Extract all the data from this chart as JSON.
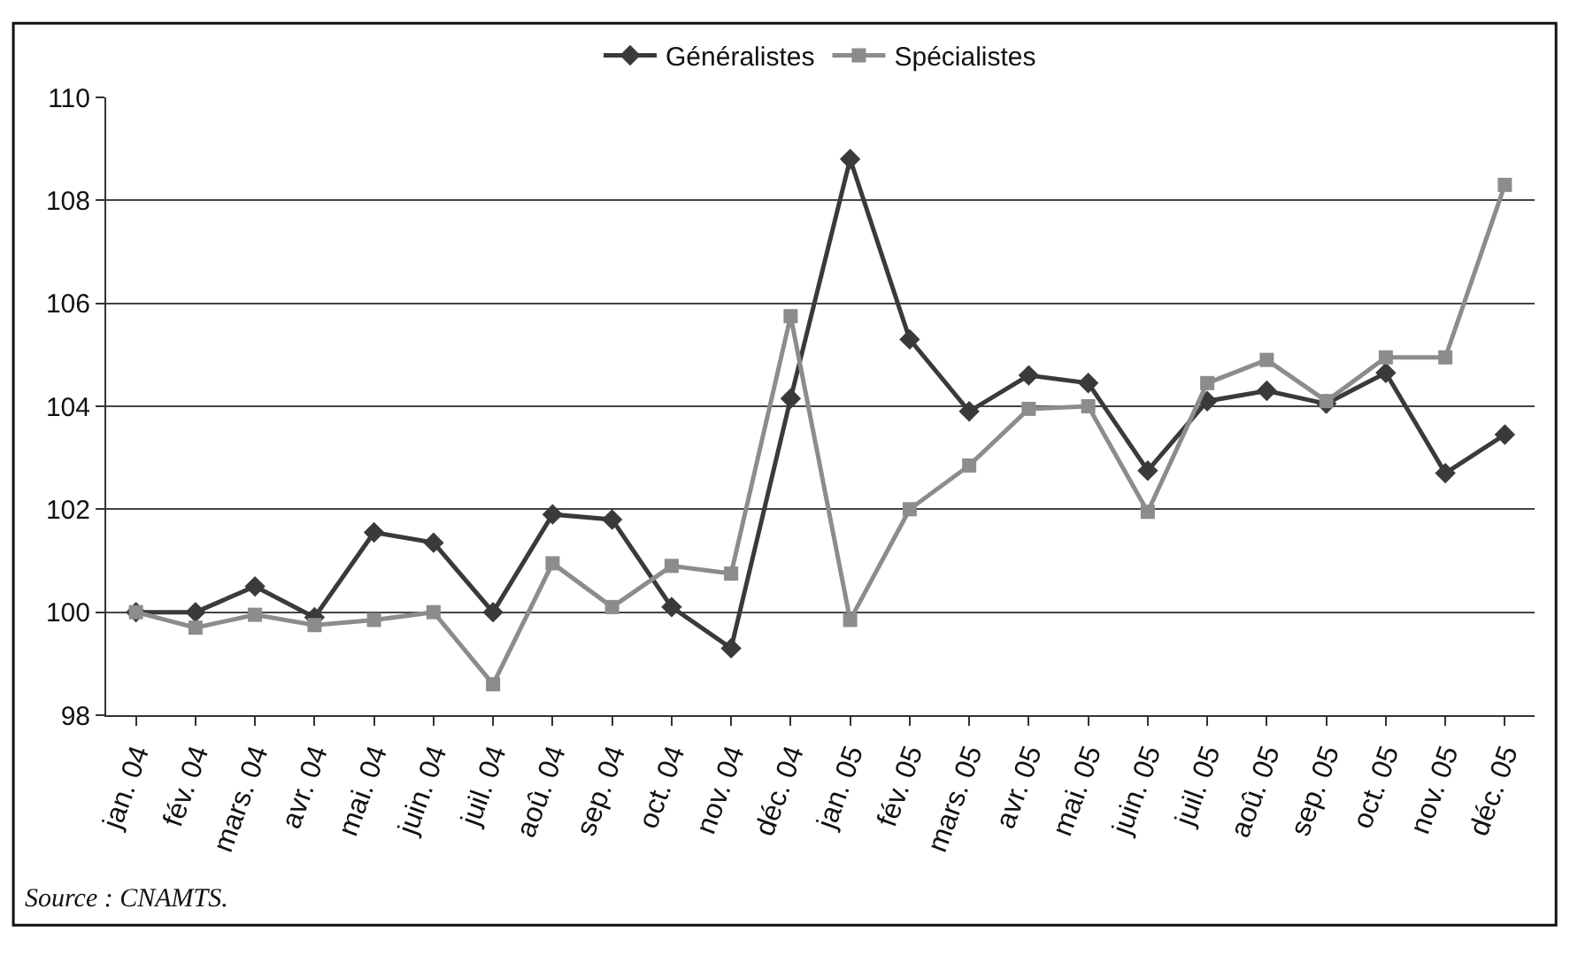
{
  "chart_data": {
    "type": "line",
    "categories": [
      "jan. 04",
      "fév. 04",
      "mars. 04",
      "avr. 04",
      "mai. 04",
      "juin. 04",
      "juil. 04",
      "aoû. 04",
      "sep. 04",
      "oct. 04",
      "nov. 04",
      "déc. 04",
      "jan. 05",
      "fév. 05",
      "mars. 05",
      "avr. 05",
      "mai. 05",
      "juin. 05",
      "juil. 05",
      "aoû. 05",
      "sep. 05",
      "oct. 05",
      "nov. 05",
      "déc. 05"
    ],
    "series": [
      {
        "name": "Généralistes",
        "color": "#3a3a3a",
        "marker": "diamond",
        "values": [
          100,
          100,
          100.5,
          99.9,
          101.55,
          101.35,
          100,
          101.9,
          101.8,
          100.1,
          99.3,
          104.15,
          108.8,
          105.3,
          103.9,
          104.6,
          104.45,
          102.75,
          104.1,
          104.3,
          104.05,
          104.65,
          102.7,
          103.45
        ]
      },
      {
        "name": "Spécialistes",
        "color": "#8c8c8c",
        "marker": "square",
        "values": [
          100,
          99.7,
          99.95,
          99.75,
          99.85,
          100,
          98.6,
          100.95,
          100.1,
          100.9,
          100.75,
          105.75,
          99.85,
          102,
          102.85,
          103.95,
          104,
          101.95,
          104.45,
          104.9,
          104.1,
          104.95,
          104.95,
          108.3
        ]
      }
    ],
    "ylim": [
      98,
      110
    ],
    "yticks": [
      98,
      100,
      102,
      104,
      106,
      108,
      110
    ],
    "grid": "y",
    "legend": "top",
    "line_style": "solid",
    "annotations": [
      "Source : CNAMTS."
    ]
  }
}
